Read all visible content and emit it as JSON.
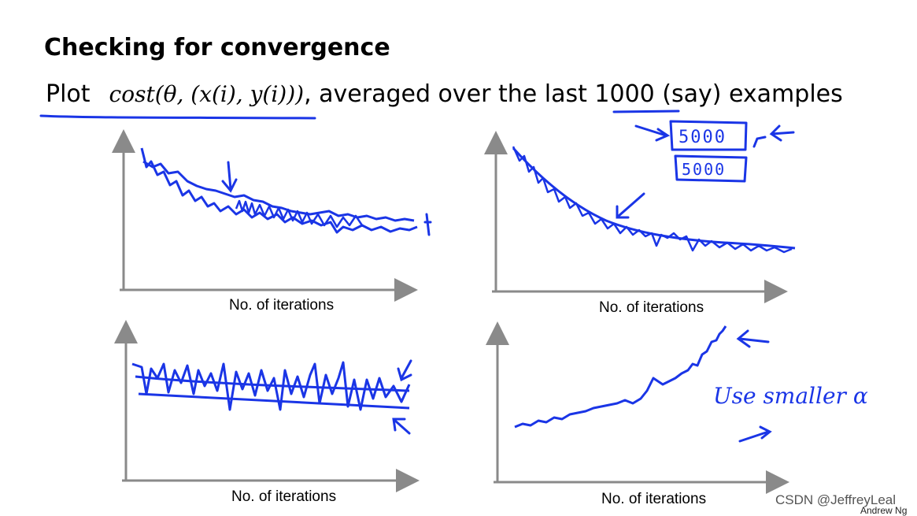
{
  "slide": {
    "title": "Checking for convergence",
    "subtitle_prefix": "Plot",
    "formula": "cost(θ, (x(i), y(i)))",
    "subtitle_suffix": ", averaged over the last 1000 (say) examples",
    "annotation_box_1": "5000",
    "annotation_box_2": "5000",
    "annotation_note": "Use smaller α",
    "watermark": "CSDN @JeffreyLeal",
    "footer": "Andrew Ng"
  },
  "plots": [
    {
      "xlabel": "No. of iterations"
    },
    {
      "xlabel": "No. of iterations"
    },
    {
      "xlabel": "No. of iterations"
    },
    {
      "xlabel": "No. of iterations"
    }
  ],
  "colors": {
    "ink": "#1a35e6",
    "axis": "#8a8a8a",
    "text": "#000000"
  }
}
